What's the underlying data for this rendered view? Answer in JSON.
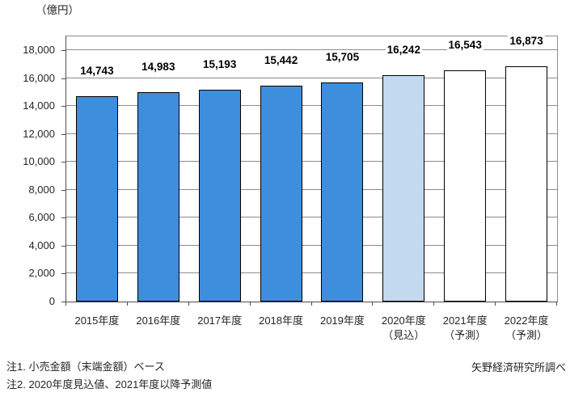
{
  "unit_label": "（億円）",
  "notes": {
    "note1": "注1. 小売金額（末端金額）ベース",
    "note2": "注2. 2020年度見込値、2021年度以降予測値"
  },
  "source": "矢野経済研究所調べ",
  "chart_data": {
    "type": "bar",
    "title": "",
    "ylabel": "（億円）",
    "categories": [
      "2015年度",
      "2016年度",
      "2017年度",
      "2018年度",
      "2019年度",
      "2020年度",
      "2021年度",
      "2022年度"
    ],
    "category_sublabels": [
      "",
      "",
      "",
      "",
      "",
      "（見込）",
      "（予測）",
      "（予測）"
    ],
    "values": [
      14743,
      14983,
      15193,
      15442,
      15705,
      16242,
      16543,
      16873
    ],
    "data_labels": [
      "14,743",
      "14,983",
      "15,193",
      "15,442",
      "15,705",
      "16,242",
      "16,543",
      "16,873"
    ],
    "bar_kinds": [
      "actual",
      "actual",
      "actual",
      "actual",
      "actual",
      "estimate",
      "forecast",
      "forecast"
    ],
    "ylim": [
      0,
      19000
    ],
    "ytick_interval": 2000,
    "ytick_labels": [
      "0",
      "2,000",
      "4,000",
      "6,000",
      "8,000",
      "10,000",
      "12,000",
      "14,000",
      "16,000",
      "18,000"
    ],
    "grid": true,
    "legend": "none",
    "colors": {
      "actual_fill": "#3E8EDE",
      "estimate_fill": "#C3D9F0",
      "forecast_fill": "#FFFFFF",
      "bar_border": "#000000",
      "gridline": "#8C8C8C",
      "axis_line": "#4D4D4D"
    }
  }
}
